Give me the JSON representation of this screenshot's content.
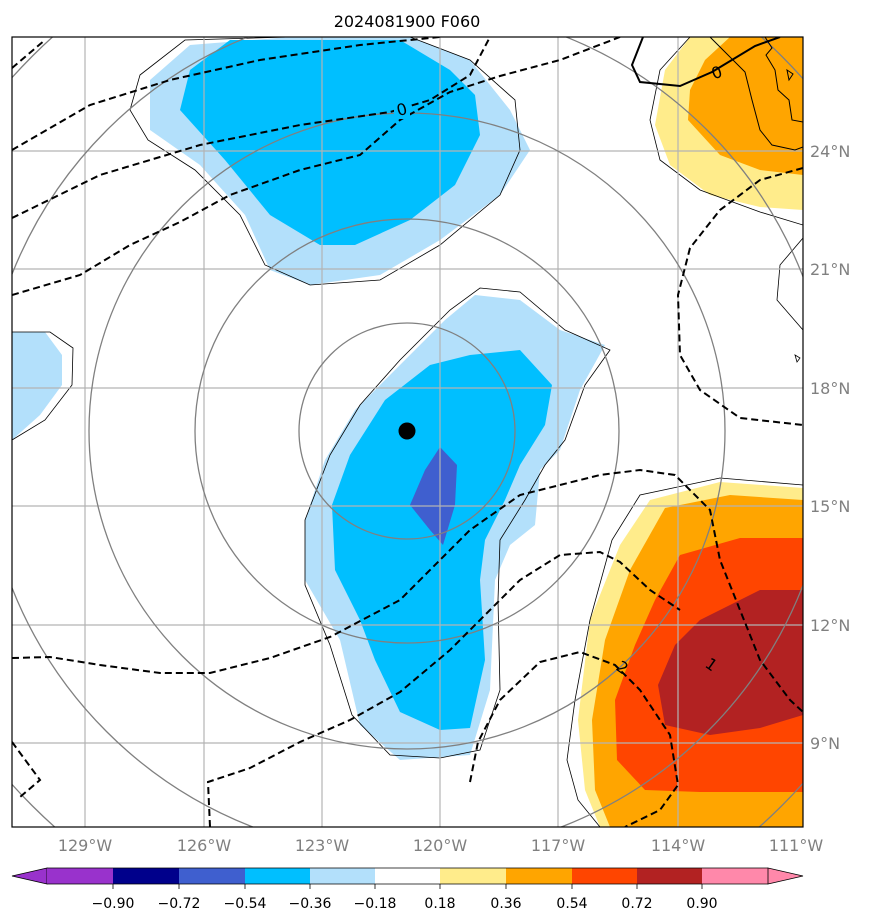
{
  "title": "2024081900 F060",
  "map": {
    "lon_ticks": [
      "129°W",
      "126°W",
      "123°W",
      "120°W",
      "117°W",
      "114°W",
      "111°W"
    ],
    "lat_ticks": [
      "24°N",
      "21°N",
      "18°N",
      "15°N",
      "12°N",
      "9°N"
    ],
    "contour_labels": [
      "0",
      "0",
      "2",
      "1"
    ],
    "storm_center": {
      "lon": -120.85,
      "lat": 16.85
    },
    "colors": {
      "blue_light": "#b3e0fb",
      "blue_mid": "#00bfff",
      "blue_dark": "#3f5fcf",
      "yellow": "#ffec8b",
      "orange": "#ffa500",
      "orange_red": "#ff4500",
      "dark_red": "#b22222",
      "grid": "#b3b3b3",
      "range_rings": "#808080"
    }
  },
  "colorbar": {
    "levels": [
      "−0.90",
      "−0.72",
      "−0.54",
      "−0.36",
      "−0.18",
      "0.18",
      "0.36",
      "0.54",
      "0.72",
      "0.90"
    ],
    "colors": [
      "#9932cc",
      "#00008b",
      "#3f5fcf",
      "#00bfff",
      "#b3e0fb",
      "#ffffff",
      "#ffec8b",
      "#ffa500",
      "#ff4500",
      "#b22222",
      "#ff88aa"
    ]
  }
}
